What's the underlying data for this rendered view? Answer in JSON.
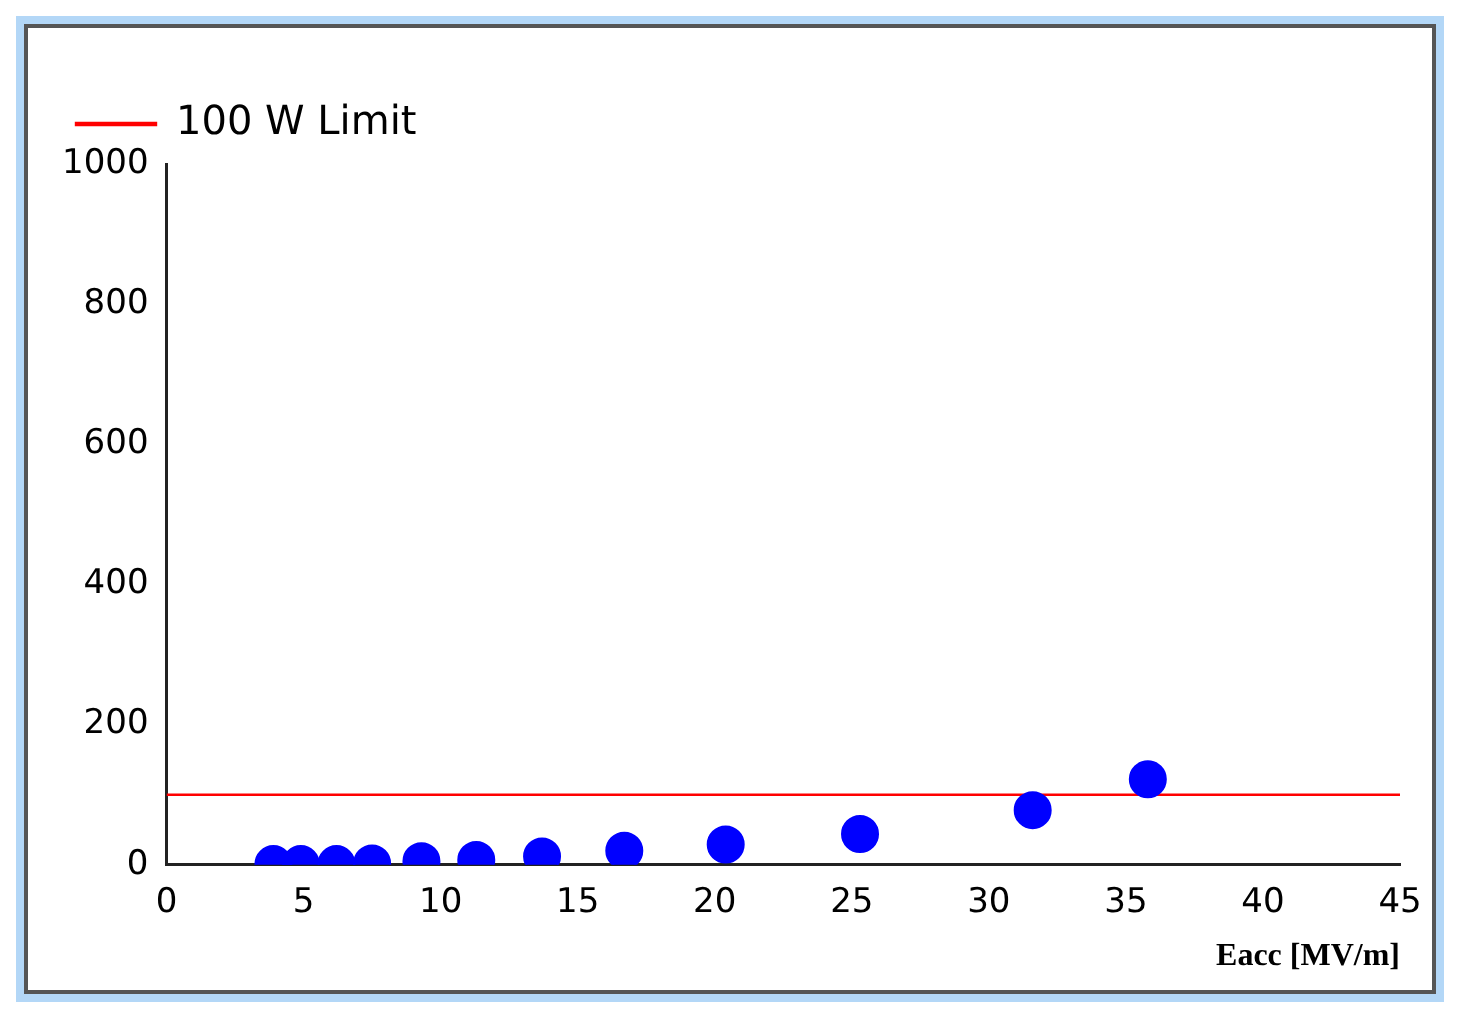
{
  "chart_data": {
    "type": "scatter",
    "xlabel": "Eacc [MV/m]",
    "x": [
      3.9,
      4.9,
      6.2,
      7.5,
      9.3,
      11.3,
      13.7,
      16.7,
      20.4,
      25.3,
      31.6,
      35.8
    ],
    "values": [
      1,
      1,
      1,
      2,
      5,
      7,
      12,
      20,
      29,
      44,
      78,
      122
    ],
    "color": "#0000ff",
    "marker": "circle",
    "xlim": [
      0,
      45
    ],
    "xticks": [
      0,
      5,
      10,
      15,
      20,
      25,
      30,
      35,
      40,
      45
    ],
    "ylim": [
      0,
      1000
    ],
    "yticks": [
      0,
      200,
      400,
      600,
      800,
      1000
    ],
    "ref_lines": [
      {
        "axis": "y",
        "value": 100,
        "label": "100 W Limit",
        "color": "#ff0000"
      }
    ],
    "legend": "top left",
    "grid": false
  }
}
